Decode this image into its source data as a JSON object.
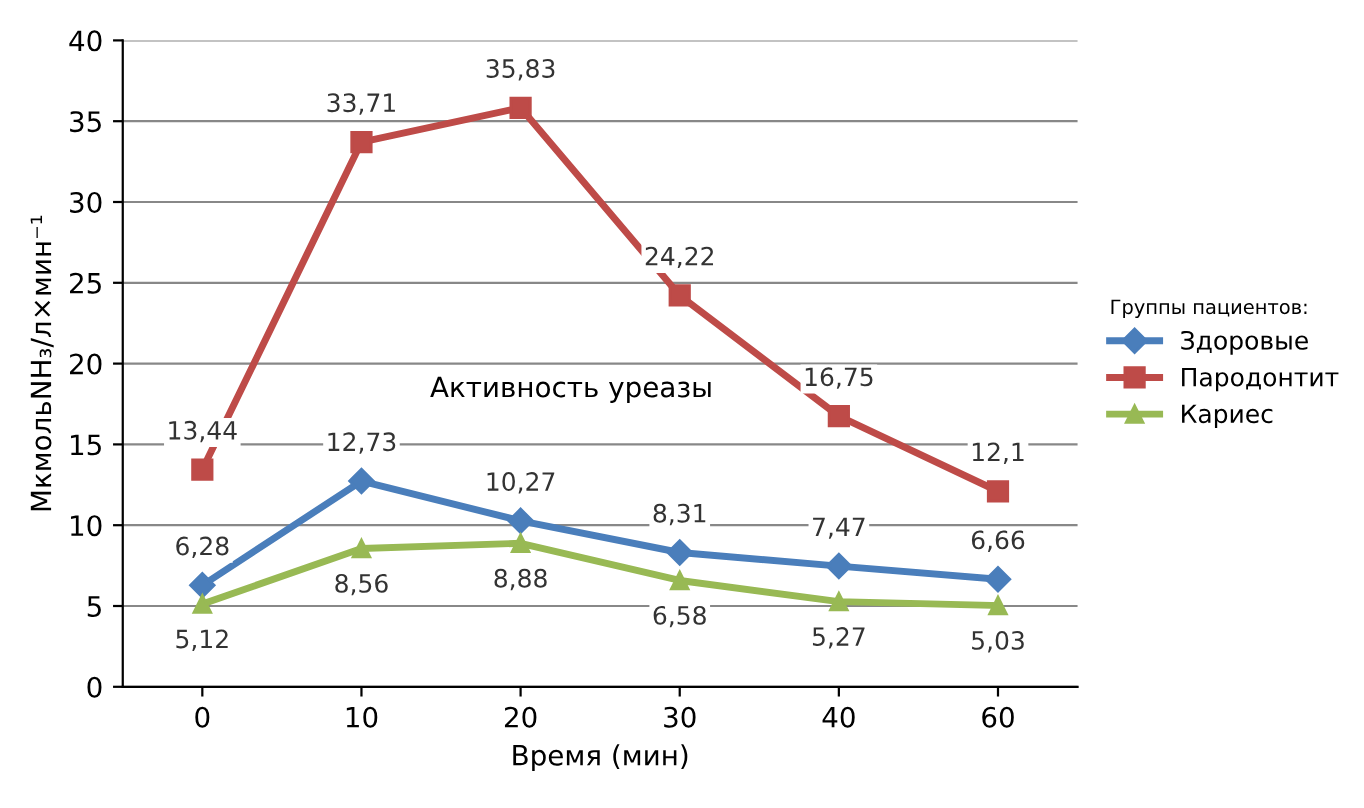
{
  "chart_data": {
    "type": "line",
    "xlabel": "Время (мин)",
    "ylabel": "МкмольNH₃/л×мин⁻¹",
    "legend_title": "Группы пациентов:",
    "categories": [
      "0",
      "10",
      "20",
      "30",
      "40",
      "60"
    ],
    "series": [
      {
        "name": "Здоровые",
        "color": "#4a7ebb",
        "marker": "diamond",
        "values": [
          6.28,
          12.73,
          10.27,
          8.31,
          7.47,
          6.66
        ],
        "value_labels": [
          "6,28",
          "12,73",
          "10,27",
          "8,31",
          "7,47",
          "6,66"
        ]
      },
      {
        "name": "Пародонтит",
        "color": "#be4b48",
        "marker": "square",
        "values": [
          13.44,
          33.71,
          35.83,
          24.22,
          16.75,
          12.1
        ],
        "value_labels": [
          "13,44",
          "33,71",
          "35,83",
          "24,22",
          "16,75",
          "12,1"
        ]
      },
      {
        "name": "Кариес",
        "color": "#98b954",
        "marker": "triangle",
        "values": [
          5.12,
          8.56,
          8.88,
          6.58,
          5.27,
          5.03
        ],
        "value_labels": [
          "5,12",
          "8,56",
          "8,88",
          "6,58",
          "5,27",
          "5,03"
        ]
      }
    ],
    "annotations": [
      "Активность уреазы"
    ],
    "ylim": [
      0,
      40
    ],
    "yticks": [
      0,
      5,
      10,
      15,
      20,
      25,
      30,
      35,
      40
    ],
    "grid": "y",
    "legend": "right"
  }
}
